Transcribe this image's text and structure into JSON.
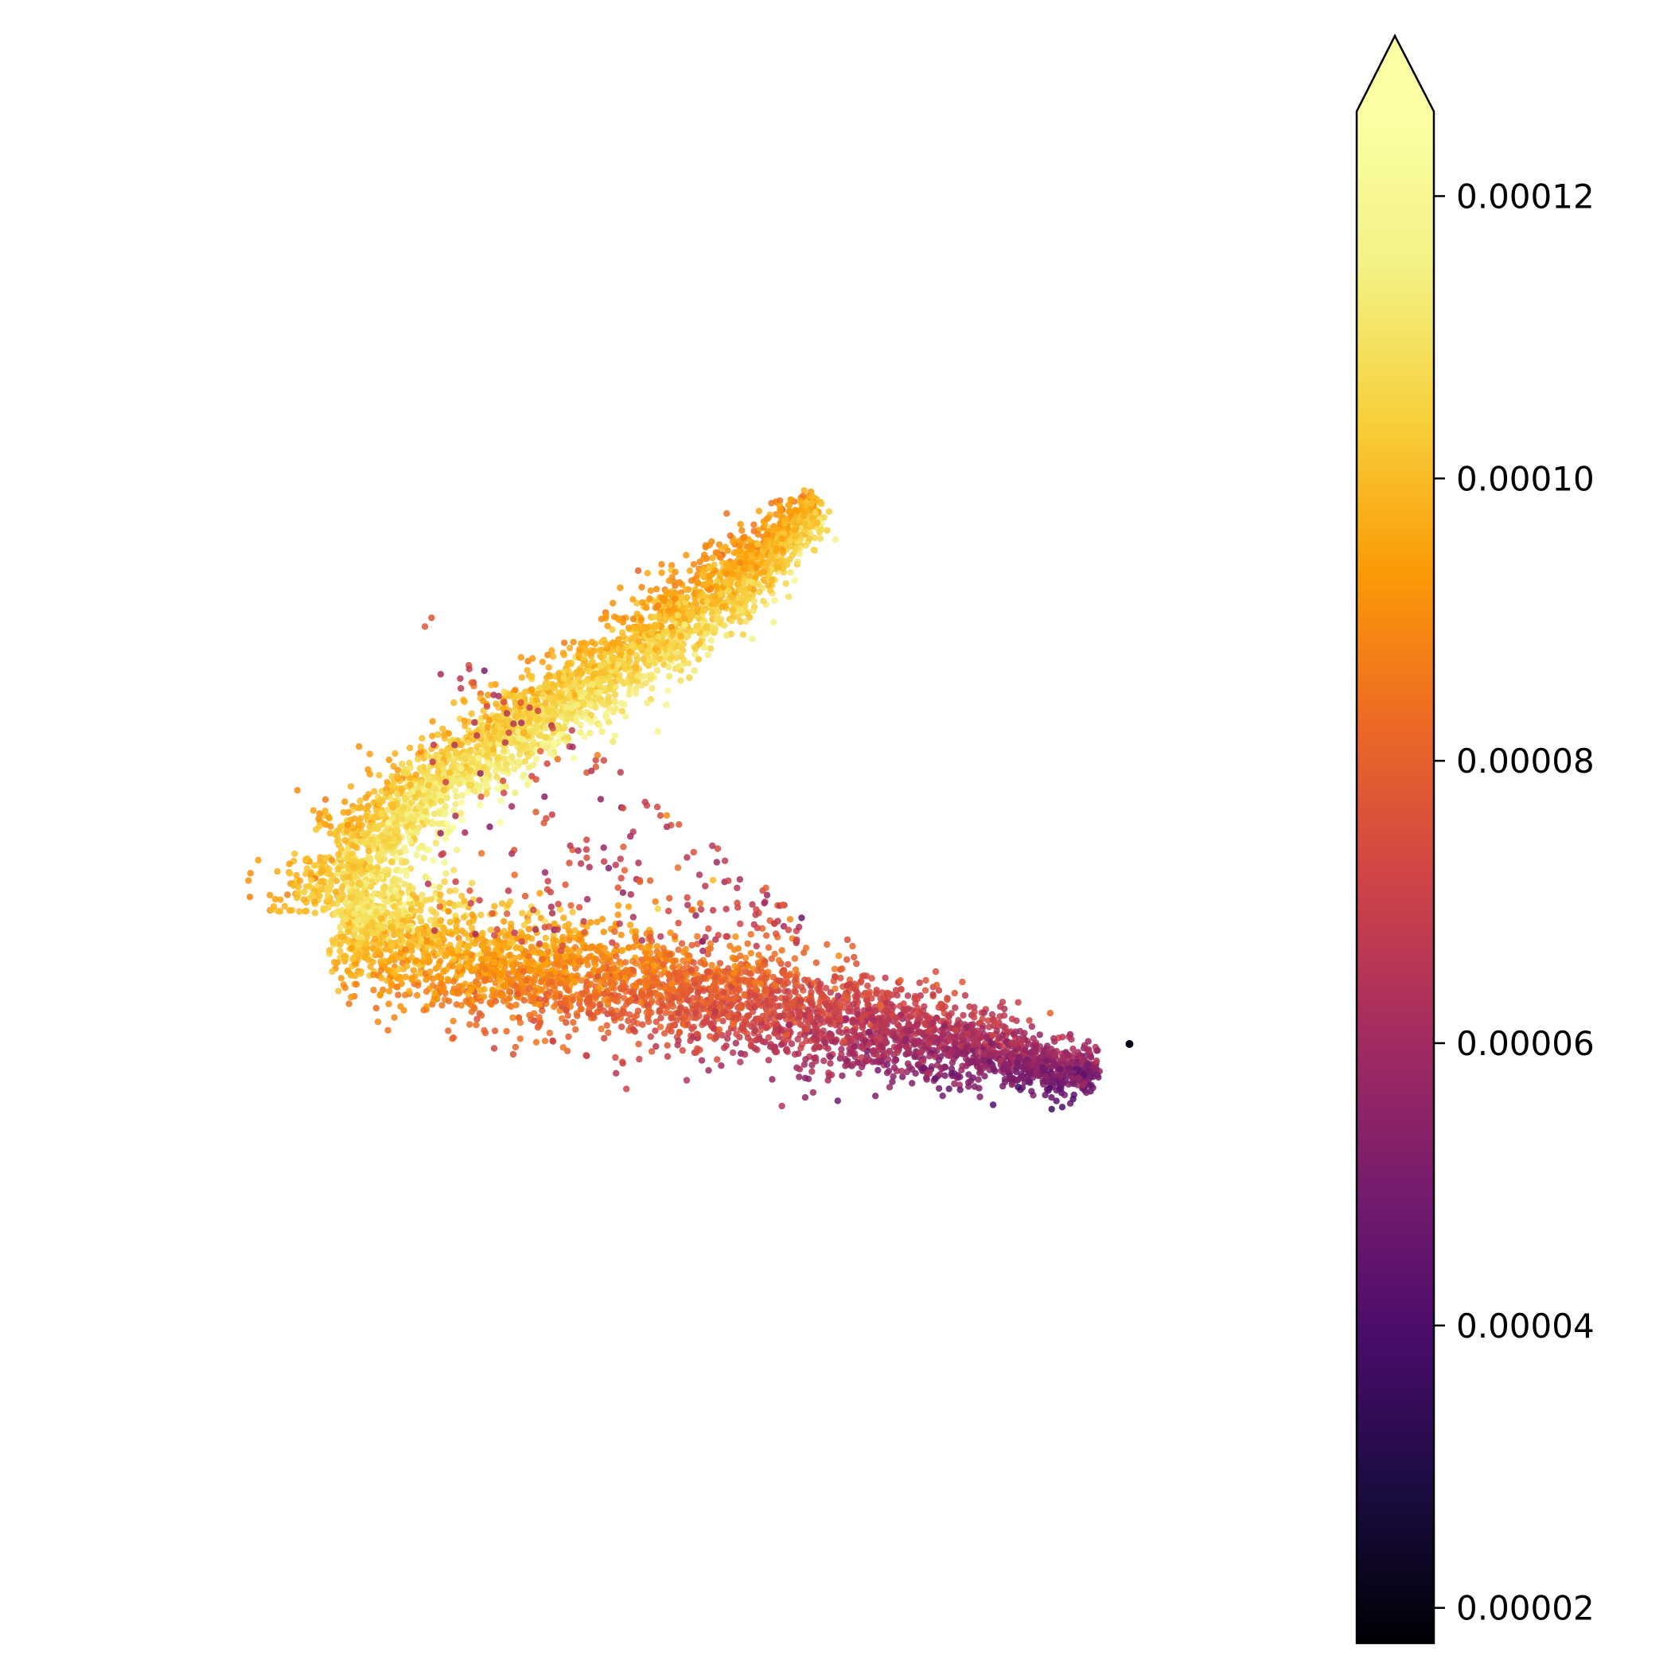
{
  "chart_data": {
    "type": "scatter",
    "title": "",
    "xlabel": "",
    "ylabel": "",
    "axes_visible": false,
    "grid": false,
    "point_count_approx": 7000,
    "x_range": [
      0.0,
      1.0
    ],
    "y_range": [
      0.0,
      1.0
    ],
    "shape_description": "boomerang-shaped point cloud: upper arm rising to upper right, lower arm extending to lower right",
    "centerline": [
      {
        "x": 0.62,
        "y": 0.97,
        "value": 0.0001
      },
      {
        "x": 0.55,
        "y": 0.88,
        "value": 9.8e-05
      },
      {
        "x": 0.44,
        "y": 0.77,
        "value": 0.000102
      },
      {
        "x": 0.3,
        "y": 0.64,
        "value": 0.000106
      },
      {
        "x": 0.16,
        "y": 0.52,
        "value": 0.000108
      },
      {
        "x": 0.06,
        "y": 0.4,
        "value": 0.000104
      },
      {
        "x": 0.05,
        "y": 0.3,
        "value": 0.000106
      },
      {
        "x": 0.16,
        "y": 0.24,
        "value": 9.5e-05
      },
      {
        "x": 0.32,
        "y": 0.21,
        "value": 8.8e-05
      },
      {
        "x": 0.5,
        "y": 0.18,
        "value": 7.8e-05
      },
      {
        "x": 0.68,
        "y": 0.13,
        "value": 6.6e-05
      },
      {
        "x": 0.85,
        "y": 0.08,
        "value": 5.7e-05
      },
      {
        "x": 0.95,
        "y": 0.05,
        "value": 5.2e-05
      }
    ],
    "outlier_value": 2e-05,
    "colorbar": {
      "colormap": "inferno",
      "vmin": 1.75e-05,
      "vmax": 0.000126,
      "extend": "max",
      "ticks": [
        2e-05,
        4e-05,
        6e-05,
        8e-05,
        0.0001,
        0.00012
      ],
      "tick_labels": [
        "0.00002",
        "0.00004",
        "0.00006",
        "0.00008",
        "0.00010",
        "0.00012"
      ]
    }
  }
}
